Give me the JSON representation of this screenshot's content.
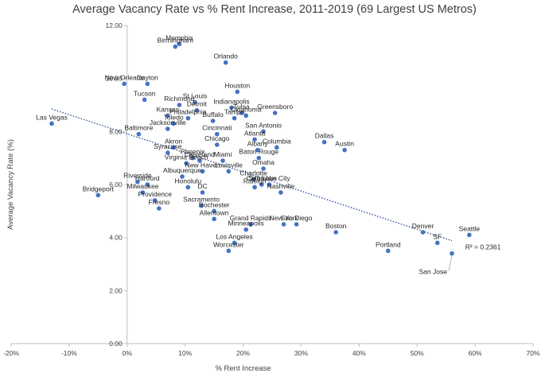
{
  "chart_data": {
    "type": "scatter",
    "title": "Average Vacancy Rate vs % Rent Increase, 2011-2019 (69 Largest US Metros)",
    "xlabel": "% Rent Increase",
    "ylabel": "Average Vacancy Rate (%)",
    "xlim": [
      -0.2,
      0.7
    ],
    "ylim": [
      0,
      12
    ],
    "x_ticks": [
      -0.2,
      -0.1,
      0,
      0.1,
      0.2,
      0.3,
      0.4,
      0.5,
      0.6,
      0.7
    ],
    "x_tick_labels": [
      "-20%",
      "-10%",
      "0%",
      "10%",
      "20%",
      "30%",
      "40%",
      "50%",
      "60%",
      "70%"
    ],
    "y_ticks": [
      0,
      2,
      4,
      6,
      8,
      10,
      12
    ],
    "y_tick_labels": [
      "0.00",
      "2.00",
      "4.00",
      "6.00",
      "8.00",
      "10.00",
      "12.00"
    ],
    "grid": false,
    "marker_color": "#4472c4",
    "trendline": {
      "type": "linear",
      "style": "dotted",
      "color": "#2f5597",
      "x_range": [
        -0.13,
        0.56
      ],
      "y_range": [
        8.85,
        3.88
      ],
      "label": "R² = 0.2361",
      "label_x": 0.583,
      "label_y": 3.55
    },
    "points": [
      {
        "label": "Las Vegas",
        "x": -0.13,
        "y": 8.3
      },
      {
        "label": "Bridgeport",
        "x": -0.05,
        "y": 5.6
      },
      {
        "label": "New Orleans",
        "x": -0.005,
        "y": 9.8
      },
      {
        "label": "Dayton",
        "x": 0.035,
        "y": 9.8
      },
      {
        "label": "Tucson",
        "x": 0.03,
        "y": 9.2
      },
      {
        "label": "Memphis",
        "x": 0.09,
        "y": 11.3
      },
      {
        "label": "Birmingham",
        "x": 0.083,
        "y": 11.2
      },
      {
        "label": "Orlando",
        "x": 0.17,
        "y": 10.6
      },
      {
        "label": "Houston",
        "x": 0.19,
        "y": 9.5
      },
      {
        "label": "St Louis",
        "x": 0.117,
        "y": 9.1
      },
      {
        "label": "Richmond",
        "x": 0.09,
        "y": 9.0
      },
      {
        "label": "Detroit",
        "x": 0.12,
        "y": 8.8
      },
      {
        "label": "Indianapolis",
        "x": 0.18,
        "y": 8.9
      },
      {
        "label": "Tulsa",
        "x": 0.197,
        "y": 8.7
      },
      {
        "label": "Tampa",
        "x": 0.185,
        "y": 8.5
      },
      {
        "label": "Oklahoma",
        "x": 0.205,
        "y": 8.6
      },
      {
        "label": "Greensboro",
        "x": 0.255,
        "y": 8.7
      },
      {
        "label": "Kansas",
        "x": 0.07,
        "y": 8.6
      },
      {
        "label": "Philadelphia",
        "x": 0.105,
        "y": 8.5
      },
      {
        "label": "Buffalo",
        "x": 0.148,
        "y": 8.4
      },
      {
        "label": "Jacksonville",
        "x": 0.07,
        "y": 8.1
      },
      {
        "label": "Toledo",
        "x": 0.08,
        "y": 8.3
      },
      {
        "label": "Baltimore",
        "x": 0.02,
        "y": 7.9
      },
      {
        "label": "San Antonio",
        "x": 0.235,
        "y": 8.0
      },
      {
        "label": "Atlanta",
        "x": 0.22,
        "y": 7.7
      },
      {
        "label": "Cincinnati",
        "x": 0.155,
        "y": 7.9
      },
      {
        "label": "Columbia",
        "x": 0.258,
        "y": 7.4
      },
      {
        "label": "Dallas",
        "x": 0.34,
        "y": 7.6
      },
      {
        "label": "Austin",
        "x": 0.375,
        "y": 7.3
      },
      {
        "label": "Chicago",
        "x": 0.155,
        "y": 7.5
      },
      {
        "label": "Albany",
        "x": 0.225,
        "y": 7.3
      },
      {
        "label": "Akron",
        "x": 0.08,
        "y": 7.4
      },
      {
        "label": "Baton Rouge",
        "x": 0.227,
        "y": 7.0
      },
      {
        "label": "Syracuse",
        "x": 0.07,
        "y": 7.2
      },
      {
        "label": "Phoenix",
        "x": 0.113,
        "y": 7.0
      },
      {
        "label": "Cleveland",
        "x": 0.125,
        "y": 6.9
      },
      {
        "label": "Virginia Beach",
        "x": 0.102,
        "y": 6.8
      },
      {
        "label": "Miami",
        "x": 0.165,
        "y": 6.9
      },
      {
        "label": "New Haven",
        "x": 0.13,
        "y": 6.5
      },
      {
        "label": "Louisville",
        "x": 0.175,
        "y": 6.5
      },
      {
        "label": "Omaha",
        "x": 0.235,
        "y": 6.6
      },
      {
        "label": "Albuquerque",
        "x": 0.095,
        "y": 6.3
      },
      {
        "label": "Charlotte",
        "x": 0.218,
        "y": 6.2
      },
      {
        "label": "Raleigh",
        "x": 0.22,
        "y": 5.9
      },
      {
        "label": "Columbus",
        "x": 0.232,
        "y": 6.0
      },
      {
        "label": "Salt Lake City",
        "x": 0.245,
        "y": 6.0
      },
      {
        "label": "Nashville",
        "x": 0.265,
        "y": 5.7
      },
      {
        "label": "Honolulu",
        "x": 0.105,
        "y": 5.9
      },
      {
        "label": "DC",
        "x": 0.13,
        "y": 5.7
      },
      {
        "label": "Riverside",
        "x": 0.018,
        "y": 6.1
      },
      {
        "label": "Hartford",
        "x": 0.035,
        "y": 6.0
      },
      {
        "label": "Milwaukee",
        "x": 0.027,
        "y": 5.7
      },
      {
        "label": "Providence",
        "x": 0.048,
        "y": 5.4
      },
      {
        "label": "Sacramento",
        "x": 0.128,
        "y": 5.2
      },
      {
        "label": "Rochester",
        "x": 0.15,
        "y": 5.0
      },
      {
        "label": "Fresno",
        "x": 0.055,
        "y": 5.1
      },
      {
        "label": "Allentown",
        "x": 0.15,
        "y": 4.7
      },
      {
        "label": "Grand Rapids",
        "x": 0.213,
        "y": 4.5
      },
      {
        "label": "Minneapolis",
        "x": 0.205,
        "y": 4.3
      },
      {
        "label": "New York",
        "x": 0.27,
        "y": 4.5
      },
      {
        "label": "San Diego",
        "x": 0.292,
        "y": 4.5
      },
      {
        "label": "Boston",
        "x": 0.36,
        "y": 4.2
      },
      {
        "label": "Los Angeles",
        "x": 0.185,
        "y": 3.8
      },
      {
        "label": "Worcester",
        "x": 0.175,
        "y": 3.5
      },
      {
        "label": "Portland",
        "x": 0.45,
        "y": 3.5
      },
      {
        "label": "Denver",
        "x": 0.51,
        "y": 4.2
      },
      {
        "label": "SF",
        "x": 0.535,
        "y": 3.8
      },
      {
        "label": "San Jose",
        "x": 0.56,
        "y": 3.4
      },
      {
        "label": "Seattle",
        "x": 0.59,
        "y": 4.1
      }
    ]
  }
}
